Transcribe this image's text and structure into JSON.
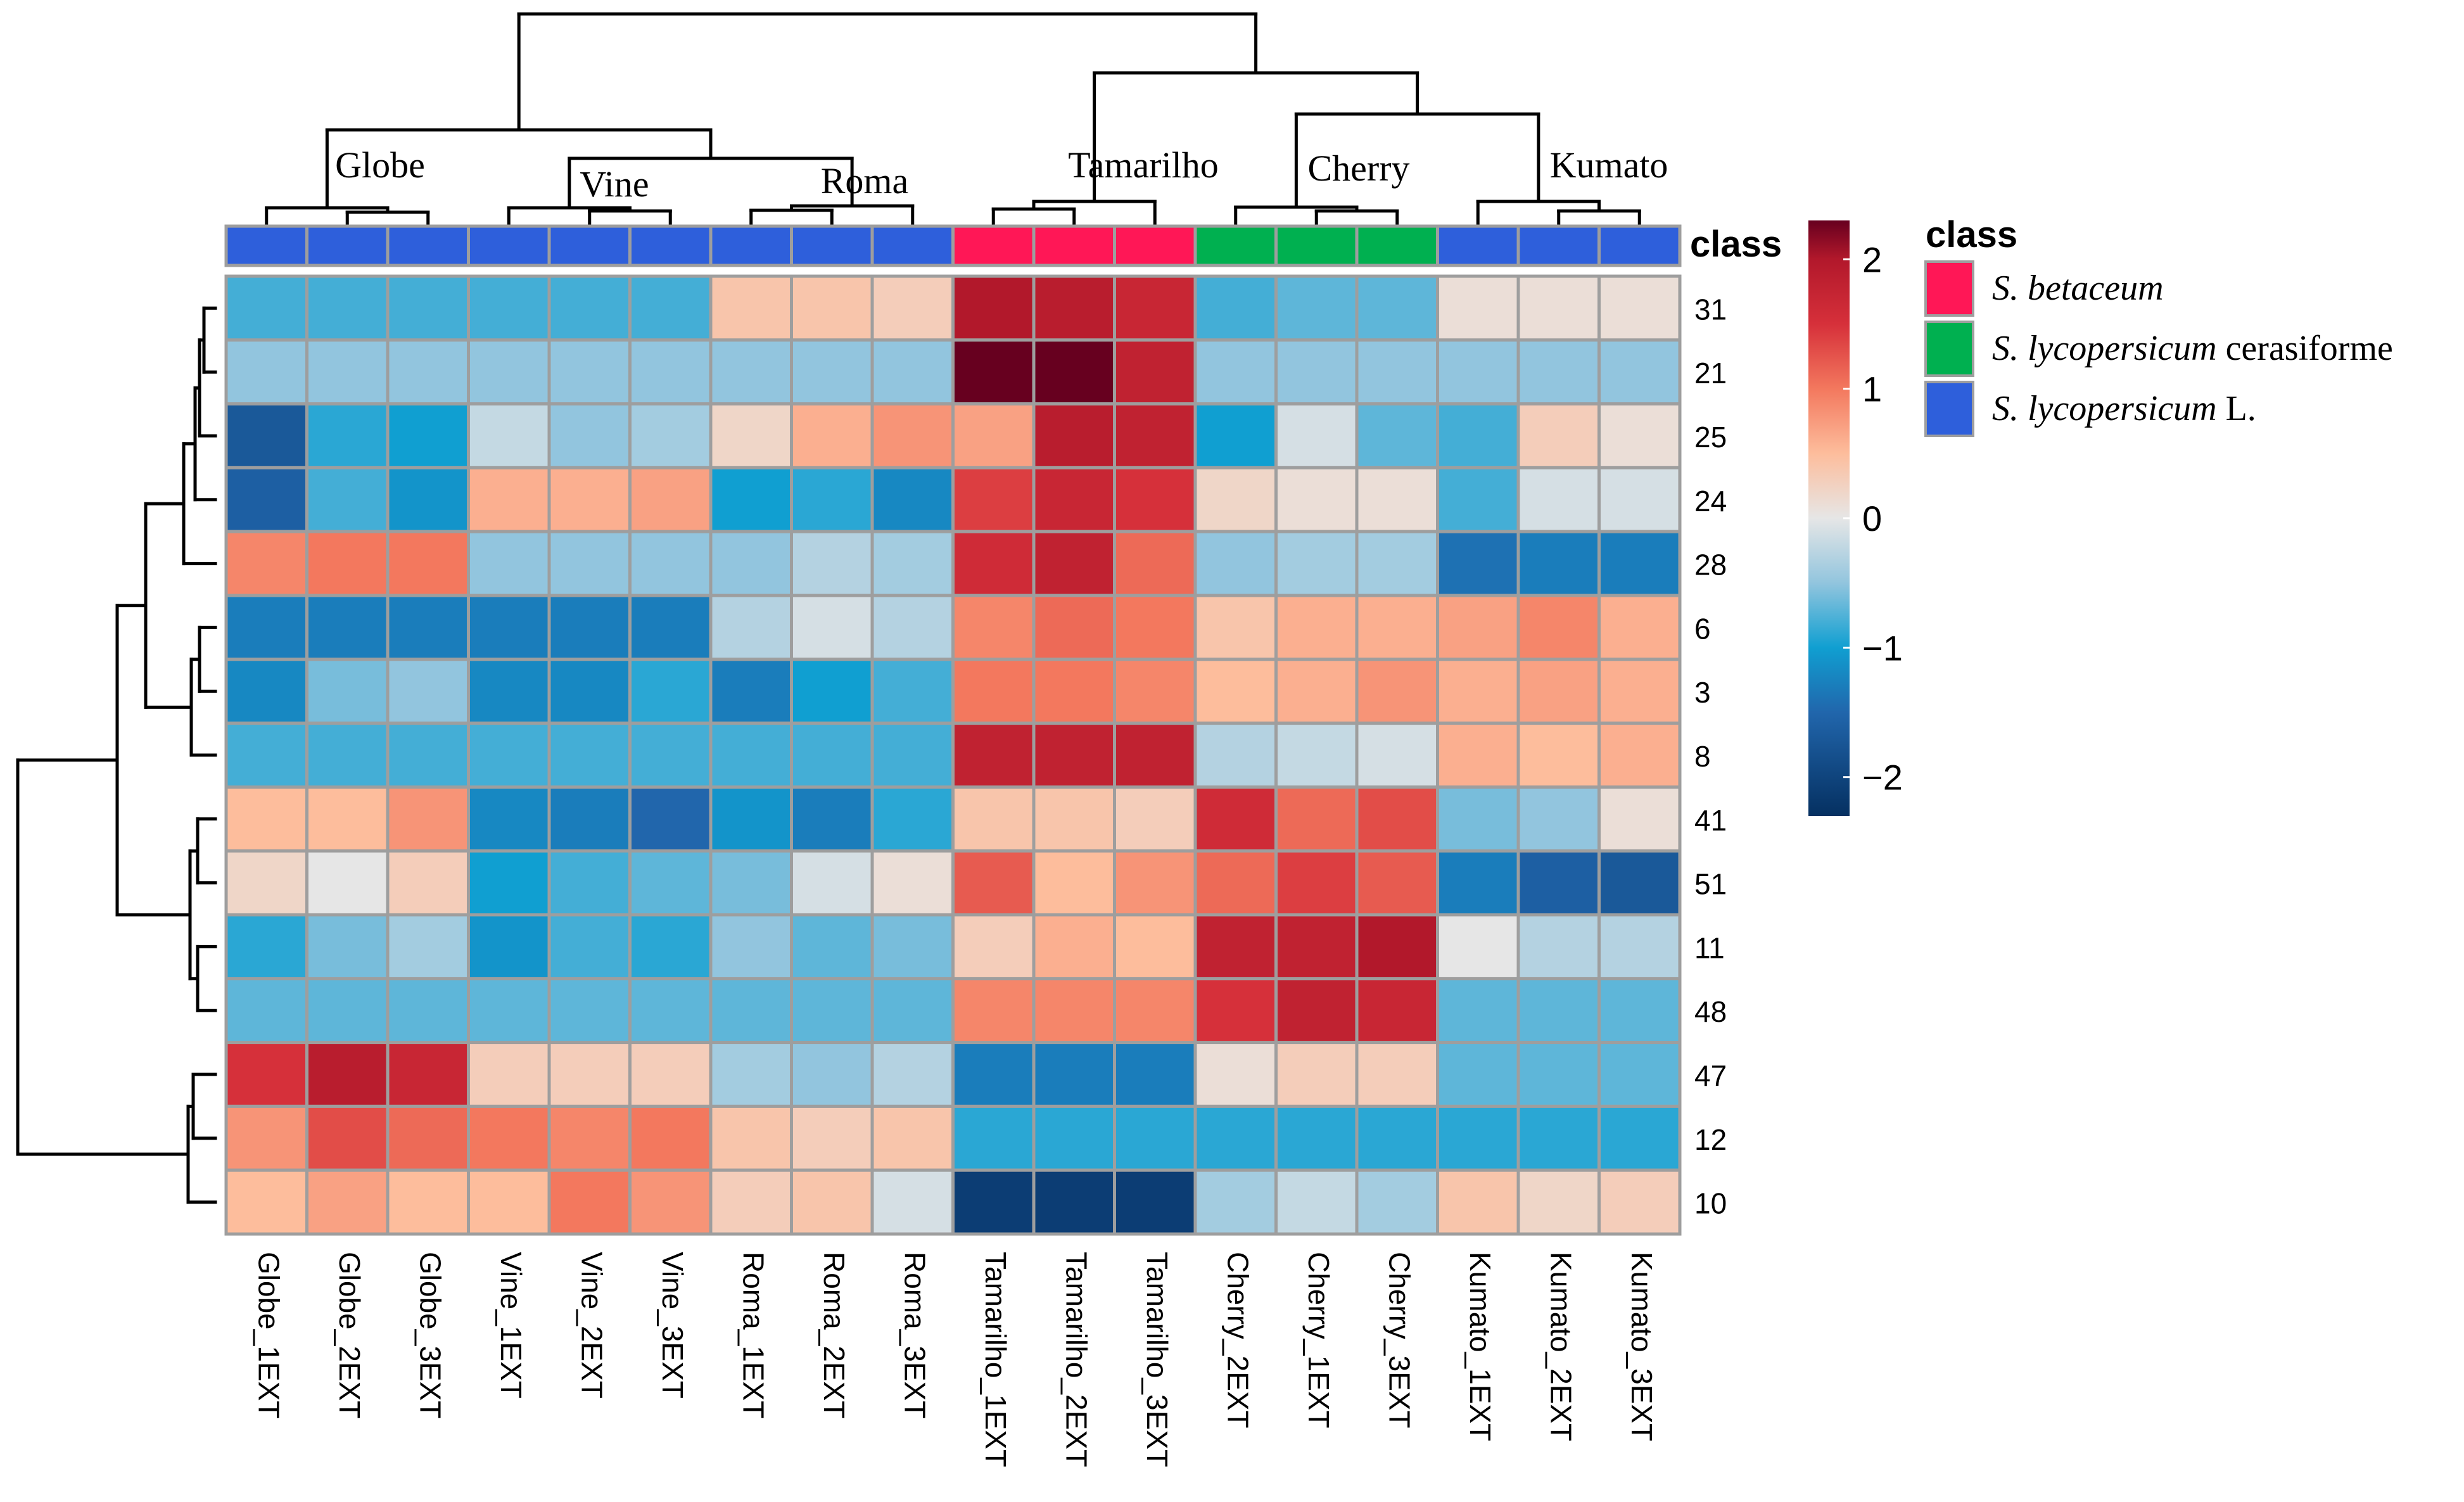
{
  "chart_data": {
    "type": "heatmap",
    "title": "",
    "columns": [
      "Globe_1EXT",
      "Globe_2EXT",
      "Globe_3EXT",
      "Vine_1EXT",
      "Vine_2EXT",
      "Vine_3EXT",
      "Roma_1EXT",
      "Roma_2EXT",
      "Roma_3EXT",
      "Tamarilho_1EXT",
      "Tamarilho_2EXT",
      "Tamarilho_3EXT",
      "Cherry_2EXT",
      "Cherry_1EXT",
      "Cherry_3EXT",
      "Kumato_1EXT",
      "Kumato_2EXT",
      "Kumato_3EXT"
    ],
    "rows": [
      "31",
      "21",
      "25",
      "24",
      "28",
      "6",
      "3",
      "8",
      "41",
      "51",
      "11",
      "48",
      "47",
      "12",
      "10"
    ],
    "column_class": [
      "S. lycopersicum L.",
      "S. lycopersicum L.",
      "S. lycopersicum L.",
      "S. lycopersicum L.",
      "S. lycopersicum L.",
      "S. lycopersicum L.",
      "S. lycopersicum L.",
      "S. lycopersicum L.",
      "S. lycopersicum L.",
      "S. betaceum",
      "S. betaceum",
      "S. betaceum",
      "S. lycopersicum cerasiforme",
      "S. lycopersicum cerasiforme",
      "S. lycopersicum cerasiforme",
      "S. lycopersicum L.",
      "S. lycopersicum L.",
      "S. lycopersicum L."
    ],
    "values": [
      [
        -0.8,
        -0.8,
        -0.8,
        -0.8,
        -0.8,
        -0.8,
        0.4,
        0.4,
        0.3,
        2.0,
        1.9,
        1.7,
        -0.8,
        -0.7,
        -0.7,
        0.1,
        0.1,
        0.1
      ],
      [
        -0.5,
        -0.5,
        -0.5,
        -0.5,
        -0.5,
        -0.5,
        -0.5,
        -0.5,
        -0.5,
        2.3,
        2.3,
        1.8,
        -0.5,
        -0.5,
        -0.5,
        -0.5,
        -0.5,
        -0.5
      ],
      [
        -1.7,
        -0.9,
        -1.0,
        -0.2,
        -0.5,
        -0.4,
        0.2,
        0.6,
        0.8,
        0.7,
        1.9,
        1.8,
        -1.0,
        -0.1,
        -0.7,
        -0.8,
        0.3,
        0.1
      ],
      [
        -1.6,
        -0.8,
        -1.1,
        0.6,
        0.6,
        0.7,
        -1.0,
        -0.9,
        -1.2,
        1.4,
        1.7,
        1.5,
        0.2,
        0.1,
        0.1,
        -0.8,
        -0.1,
        -0.1
      ],
      [
        0.9,
        1.0,
        1.0,
        -0.5,
        -0.5,
        -0.5,
        -0.5,
        -0.3,
        -0.4,
        1.6,
        1.8,
        1.1,
        -0.5,
        -0.4,
        -0.4,
        -1.4,
        -1.3,
        -1.3
      ],
      [
        -1.3,
        -1.3,
        -1.3,
        -1.3,
        -1.3,
        -1.3,
        -0.3,
        -0.1,
        -0.3,
        0.9,
        1.1,
        1.0,
        0.4,
        0.6,
        0.6,
        0.7,
        0.9,
        0.6
      ],
      [
        -1.2,
        -0.6,
        -0.5,
        -1.2,
        -1.2,
        -0.9,
        -1.3,
        -1.0,
        -0.8,
        1.0,
        1.0,
        0.9,
        0.5,
        0.6,
        0.8,
        0.6,
        0.7,
        0.6
      ],
      [
        -0.8,
        -0.8,
        -0.8,
        -0.8,
        -0.8,
        -0.8,
        -0.8,
        -0.8,
        -0.8,
        1.8,
        1.8,
        1.8,
        -0.3,
        -0.2,
        -0.1,
        0.6,
        0.5,
        0.6
      ],
      [
        0.5,
        0.5,
        0.8,
        -1.2,
        -1.3,
        -1.5,
        -1.1,
        -1.3,
        -0.9,
        0.4,
        0.4,
        0.3,
        1.6,
        1.1,
        1.3,
        -0.6,
        -0.5,
        0.1
      ],
      [
        0.2,
        0.0,
        0.3,
        -1.0,
        -0.8,
        -0.7,
        -0.6,
        -0.1,
        0.1,
        1.2,
        0.5,
        0.8,
        1.1,
        1.4,
        1.2,
        -1.3,
        -1.6,
        -1.7
      ],
      [
        -0.9,
        -0.6,
        -0.4,
        -1.1,
        -0.8,
        -0.9,
        -0.5,
        -0.7,
        -0.6,
        0.3,
        0.6,
        0.5,
        1.8,
        1.8,
        2.0,
        0.0,
        -0.3,
        -0.3
      ],
      [
        -0.7,
        -0.7,
        -0.7,
        -0.7,
        -0.7,
        -0.7,
        -0.7,
        -0.7,
        -0.7,
        0.9,
        0.9,
        0.9,
        1.5,
        1.8,
        1.7,
        -0.7,
        -0.7,
        -0.7
      ],
      [
        1.5,
        1.9,
        1.7,
        0.3,
        0.3,
        0.3,
        -0.4,
        -0.5,
        -0.3,
        -1.3,
        -1.3,
        -1.3,
        0.1,
        0.3,
        0.3,
        -0.7,
        -0.7,
        -0.7
      ],
      [
        0.8,
        1.3,
        1.1,
        1.0,
        0.9,
        1.0,
        0.4,
        0.3,
        0.4,
        -0.9,
        -0.9,
        -0.9,
        -0.9,
        -0.9,
        -0.9,
        -0.9,
        -0.9,
        -0.9
      ],
      [
        0.5,
        0.7,
        0.5,
        0.5,
        1.0,
        0.8,
        0.3,
        0.4,
        -0.1,
        -2.1,
        -2.1,
        -2.1,
        -0.4,
        -0.2,
        -0.4,
        0.4,
        0.2,
        0.3
      ]
    ],
    "color_scale": {
      "range": [
        -2.3,
        2.3
      ],
      "ticks": [
        2,
        1,
        0,
        -1,
        -2
      ],
      "tick_labels": [
        "2",
        "1",
        "0",
        "−1",
        "−2"
      ],
      "stops": [
        {
          "value": -2.3,
          "color": "#053061"
        },
        {
          "value": -1.5,
          "color": "#2166ac"
        },
        {
          "value": -1.0,
          "color": "#109fd1"
        },
        {
          "value": -0.5,
          "color": "#92c5de"
        },
        {
          "value": 0.0,
          "color": "#e6e6e6"
        },
        {
          "value": 0.5,
          "color": "#fdbd9c"
        },
        {
          "value": 1.0,
          "color": "#f3785e"
        },
        {
          "value": 1.5,
          "color": "#d6303a"
        },
        {
          "value": 2.0,
          "color": "#b2182b"
        },
        {
          "value": 2.3,
          "color": "#67001f"
        }
      ]
    },
    "class_colors": {
      "S. betaceum": "#ff1756",
      "S. lycopersicum cerasiforme": "#00b050",
      "S. lycopersicum L.": "#2e5fdb"
    },
    "col_dendrogram": {
      "order": [
        0,
        1,
        2,
        3,
        4,
        5,
        6,
        7,
        8,
        9,
        10,
        11,
        12,
        13,
        14,
        15,
        16,
        17
      ]
    },
    "row_dendrogram": {
      "order": [
        0,
        1,
        2,
        3,
        4,
        5,
        6,
        7,
        8,
        9,
        10,
        11,
        12,
        13,
        14
      ]
    }
  },
  "group_labels": [
    "Globe",
    "Vine",
    "Roma",
    "Tamarilho",
    "Cherry",
    "Kumato"
  ],
  "class_track_label": "class",
  "legend": {
    "title": "class",
    "entries": [
      {
        "italic": "S. betaceum",
        "plain": "",
        "class": "S. betaceum"
      },
      {
        "italic": "S. lycopersicum",
        "plain": " cerasiforme",
        "class": "S. lycopersicum cerasiforme"
      },
      {
        "italic": "S. lycopersicum",
        "plain": " L.",
        "class": "S. lycopersicum L."
      }
    ]
  },
  "colors": {
    "grid": "#9e9e9e",
    "dendrogram": "#000000",
    "text": "#000000"
  }
}
